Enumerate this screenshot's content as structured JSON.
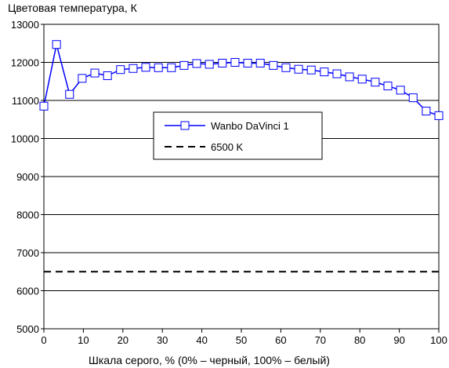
{
  "chart_data": {
    "type": "line",
    "title": "Цветовая температура, К",
    "xlabel": "Шкала серого, % (0% – черный, 100% – белый)",
    "ylabel": "",
    "xlim": [
      0,
      100
    ],
    "ylim": [
      5000,
      13000
    ],
    "xticks": [
      0,
      10,
      20,
      30,
      40,
      50,
      60,
      70,
      80,
      90,
      100
    ],
    "yticks": [
      5000,
      6000,
      7000,
      8000,
      9000,
      10000,
      11000,
      12000,
      13000
    ],
    "grid": "horizontal",
    "legend_position": "center-left",
    "series": [
      {
        "name": "Wanbo DaVinci 1",
        "color": "#0000ff",
        "marker": "open-square",
        "x": [
          0,
          3.2,
          6.5,
          9.7,
          12.9,
          16.1,
          19.4,
          22.6,
          25.8,
          29,
          32.3,
          35.5,
          38.7,
          41.9,
          45.2,
          48.4,
          51.6,
          54.8,
          58.1,
          61.3,
          64.5,
          67.7,
          71,
          74.2,
          77.4,
          80.6,
          83.9,
          87.1,
          90.3,
          93.5,
          96.8,
          100
        ],
        "values": [
          10850,
          12470,
          11160,
          11580,
          11720,
          11650,
          11810,
          11840,
          11870,
          11860,
          11860,
          11920,
          11970,
          11950,
          11980,
          12000,
          11980,
          11980,
          11920,
          11860,
          11820,
          11800,
          11750,
          11700,
          11620,
          11560,
          11480,
          11380,
          11270,
          11070,
          10720,
          10600
        ]
      },
      {
        "name": "6500 K",
        "color": "#000000",
        "style": "dashed",
        "x": [
          0,
          100
        ],
        "values": [
          6500,
          6500
        ]
      }
    ]
  }
}
